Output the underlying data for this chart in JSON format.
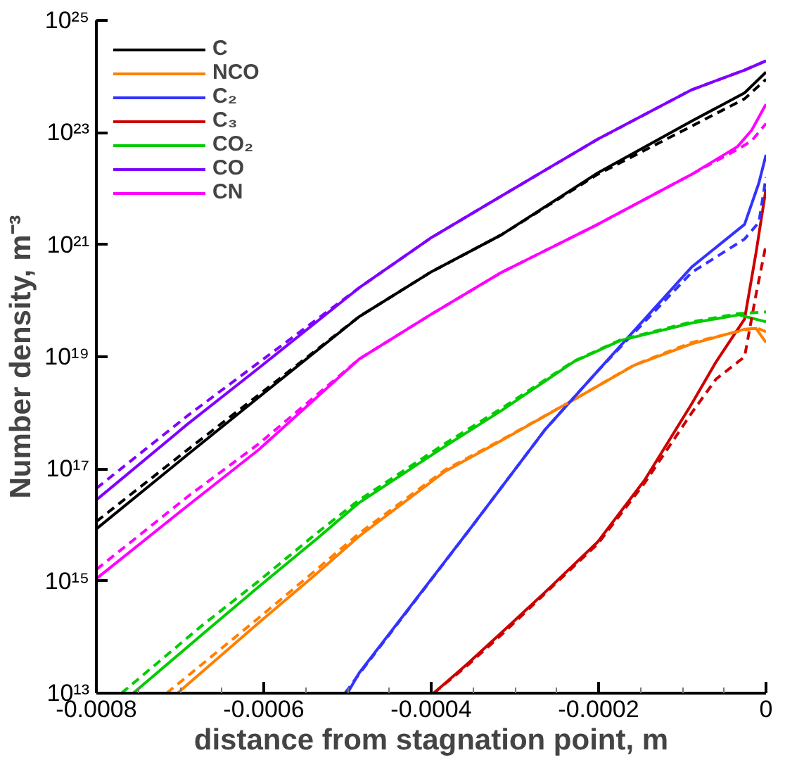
{
  "chart_data": {
    "type": "line",
    "xlabel": "distance from stagnation point, m",
    "ylabel": "Number density, m⁻³",
    "log": "y",
    "grid": false,
    "legend": "top left",
    "marker": "none",
    "line_style": "solid",
    "xlim": [
      -0.0008,
      0
    ],
    "ylim": [
      10000000000000.0,
      1e+25
    ],
    "xticks": [
      -0.0008,
      {
        "value": -0.00075,
        "label": null
      },
      {
        "value": -0.0007,
        "label": null
      },
      {
        "value": -0.00065,
        "label": null
      },
      -0.0006,
      {
        "value": -0.00055,
        "label": null
      },
      {
        "value": -0.0005,
        "label": null
      },
      {
        "value": -0.00045,
        "label": null
      },
      -0.0004,
      {
        "value": -0.00035,
        "label": null
      },
      {
        "value": -0.0003,
        "label": null
      },
      {
        "value": -0.00025,
        "label": null
      },
      -0.0002,
      {
        "value": -0.00015,
        "label": null
      },
      {
        "value": -0.0001,
        "label": null
      },
      {
        "value": -5e-05,
        "label": null
      },
      0
    ],
    "yticks": [
      {
        "value": 10000000000000.0,
        "label": "10¹³"
      },
      {
        "value": 1000000000000000.0,
        "label": "10¹⁵"
      },
      {
        "value": 1e+17,
        "label": "10¹⁷"
      },
      {
        "value": 1e+19,
        "label": "10¹⁹"
      },
      {
        "value": 1e+21,
        "label": "10²¹"
      },
      {
        "value": 1e+23,
        "label": "10²³"
      },
      {
        "value": 1e+25,
        "label": "10²⁵"
      }
    ],
    "series": [
      {
        "name": "C",
        "color": "#000000",
        "x": [
          -0.0008,
          -0.000691,
          -0.000606,
          -0.000486,
          -0.000401,
          -0.000316,
          -0.000201,
          -8.87e-05,
          -2.56e-05,
          0
        ],
        "values": [
          8500000000000000.0,
          1.8e+17,
          1.9e+18,
          5.2e+19,
          3.2e+20,
          1.5e+21,
          1.9e+22,
          1.6e+23,
          5.1e+23,
          1.2e+24
        ]
      },
      {
        "name": "NCO",
        "color": "#ff8000",
        "x": [
          -0.000703,
          -0.000606,
          -0.000537,
          -0.000486,
          -0.000384,
          -0.000316,
          -0.00023,
          -0.000157,
          -8.87e-05,
          -2.56e-05,
          -1.19e-05,
          0
        ],
        "values": [
          10000000000000.0,
          180000000000000.0,
          1350000000000000.0,
          6300000000000000.0,
          8.9e+16,
          3.2e+17,
          1.7e+18,
          7.1e+18,
          1.7e+19,
          3.1e+19,
          3.2e+19,
          1.8e+19
        ]
      },
      {
        "name": "C₂",
        "color": "#3333ff",
        "x": [
          -0.0005,
          -0.000486,
          -0.00035,
          -0.000264,
          -0.000201,
          -8.87e-05,
          -2.56e-05,
          -8.5e-06,
          0
        ],
        "values": [
          10000000000000.0,
          23000000000000.0,
          1e+16,
          5e+17,
          5.6e+18,
          4e+20,
          2.3e+21,
          1.26e+22,
          4e+22
        ]
      },
      {
        "name": "C₃",
        "color": "#cc0000",
        "x": [
          -0.000397,
          -0.000358,
          -0.000316,
          -0.000264,
          -0.000201,
          -0.000145,
          -8.87e-05,
          -5.97e-05,
          -2.56e-05,
          -1.19e-05,
          0
        ],
        "values": [
          10000000000000.0,
          32000000000000.0,
          120000000000000.0,
          630000000000000.0,
          5000000000000000.0,
          6.3e+16,
          1.45e+18,
          8.1e+18,
          4.7e+19,
          7.2e+20,
          1e+22
        ]
      },
      {
        "name": "CO₂",
        "color": "#00cc00",
        "x": [
          -0.000756,
          -0.000674,
          -0.000606,
          -0.000537,
          -0.000486,
          -0.000384,
          -0.000316,
          -0.00023,
          -0.000174,
          -8.87e-05,
          -3.24e-05,
          0
        ],
        "values": [
          10000000000000.0,
          110000000000000.0,
          790000000000000.0,
          5600000000000000.0,
          2.5e+16,
          2.5e+17,
          1.1e+18,
          8.1e+18,
          1.95e+19,
          4e+19,
          5.6e+19,
          4.2e+19
        ]
      },
      {
        "name": "CO",
        "color": "#8000ff",
        "x": [
          -0.0008,
          -0.000691,
          -0.000606,
          -0.000486,
          -0.000401,
          -0.000316,
          -0.000201,
          -8.87e-05,
          -2.56e-05,
          0
        ],
        "values": [
          2.8e+16,
          6.3e+17,
          6.3e+18,
          1.7e+20,
          1.3e+21,
          7.4e+21,
          7.6e+22,
          5.8e+23,
          1.3e+24,
          1.9e+24
        ]
      },
      {
        "name": "CN",
        "color": "#ff00ff",
        "x": [
          -0.0008,
          -0.000691,
          -0.000606,
          -0.000486,
          -0.000401,
          -0.000316,
          -0.000201,
          -8.87e-05,
          -3.41e-05,
          -1.71e-05,
          0
        ],
        "values": [
          1100000000000000.0,
          2.2e+16,
          2.2e+17,
          9.1e+18,
          5.6e+19,
          3.2e+20,
          2.3e+21,
          1.8e+22,
          5.6e+22,
          1.1e+23,
          3.2e+23
        ]
      },
      {
        "color": "#000000",
        "line_style": "dashed",
        "x": [
          -0.0008,
          -0.000691,
          -0.000606,
          -0.000486,
          -0.000401,
          -0.000316,
          -0.000201,
          -8.87e-05,
          -2.56e-05,
          0
        ],
        "values": [
          1.15e+16,
          2.2e+17,
          2.1e+18,
          5.2e+19,
          3.2e+20,
          1.5e+21,
          1.8e+22,
          1.3e+23,
          4e+23,
          8.9e+23
        ]
      },
      {
        "color": "#ff8000",
        "line_style": "dashed",
        "x": [
          -0.000716,
          -0.000606,
          -0.000537,
          -0.000486,
          -0.000384,
          -0.000316,
          -0.00023,
          -0.000157,
          -8.87e-05,
          -2.56e-05,
          -1.19e-05,
          0
        ],
        "values": [
          10000000000000.0,
          220000000000000.0,
          1600000000000000.0,
          7100000000000000.0,
          9.5e+16,
          3.3e+17,
          1.7e+18,
          7.2e+18,
          1.8e+19,
          3e+19,
          3.3e+19,
          2.8e+19
        ]
      },
      {
        "color": "#3333ff",
        "line_style": "dashed",
        "x": [
          -0.000503,
          -0.000486,
          -0.00035,
          -0.000264,
          -0.000201,
          -8.87e-05,
          -2.56e-05,
          -8.5e-06,
          0
        ],
        "values": [
          10000000000000.0,
          22000000000000.0,
          1e+16,
          5e+17,
          5.6e+18,
          3.2e+20,
          1.26e+21,
          2.5e+21,
          1.6e+22
        ]
      },
      {
        "color": "#cc0000",
        "line_style": "dashed",
        "x": [
          -0.000397,
          -0.000358,
          -0.000316,
          -0.000264,
          -0.000201,
          -0.000145,
          -8.87e-05,
          -5.97e-05,
          -2.56e-05,
          -1.19e-05,
          0
        ],
        "values": [
          10000000000000.0,
          30000000000000.0,
          110000000000000.0,
          600000000000000.0,
          4600000000000000.0,
          5.6e+16,
          1e+18,
          4e+18,
          1e+19,
          1.3e+20,
          1e+21
        ]
      },
      {
        "color": "#00cc00",
        "line_style": "dashed",
        "x": [
          -0.00077,
          -0.000674,
          -0.000606,
          -0.000537,
          -0.000486,
          -0.000384,
          -0.000316,
          -0.00023,
          -0.000174,
          -8.87e-05,
          -3.24e-05,
          0
        ],
        "values": [
          10000000000000.0,
          160000000000000.0,
          1000000000000000.0,
          7100000000000000.0,
          2.8e+16,
          2.8e+17,
          1.2e+18,
          8.3e+18,
          2e+19,
          4.2e+19,
          5.9e+19,
          6.3e+19
        ]
      },
      {
        "color": "#8000ff",
        "line_style": "dashed",
        "x": [
          -0.0008,
          -0.000691,
          -0.000606,
          -0.000486,
          -0.000401,
          -0.000316,
          -0.000201,
          -8.87e-05,
          -2.56e-05,
          0
        ],
        "values": [
          4.5e+16,
          8.9e+17,
          7.9e+18,
          1.7e+20,
          1.3e+21,
          7.4e+21,
          7.6e+22,
          5.8e+23,
          1.3e+24,
          1.9e+24
        ]
      },
      {
        "color": "#ff00ff",
        "line_style": "dashed",
        "x": [
          -0.0008,
          -0.000691,
          -0.000606,
          -0.000486,
          -0.000401,
          -0.000316,
          -0.000201,
          -8.87e-05,
          -3.41e-05,
          -1.71e-05,
          0
        ],
        "values": [
          1600000000000000.0,
          3.2e+16,
          2.8e+17,
          9.1e+18,
          5.6e+19,
          3.2e+20,
          2.3e+21,
          1.8e+22,
          5e+22,
          7.1e+22,
          1.45e+23
        ]
      }
    ]
  }
}
